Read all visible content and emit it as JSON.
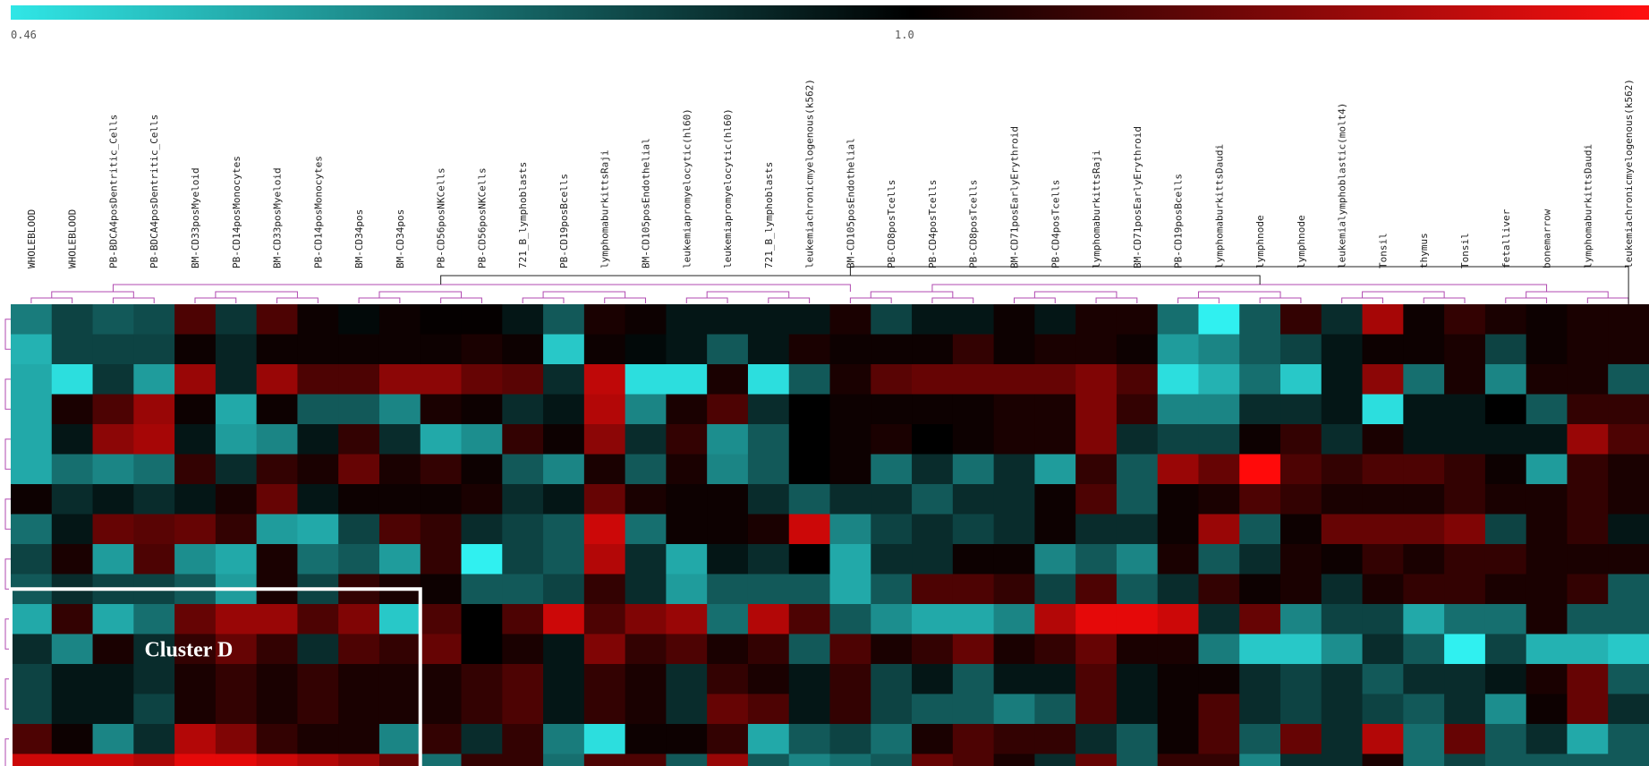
{
  "chart_data": {
    "type": "heatmap",
    "color_scale": {
      "min_label": "0.46",
      "mid_label": "1.0",
      "colors": [
        "#30e6e6",
        "#000000",
        "#ff0000"
      ]
    },
    "columns": [
      "WHOLEBLOOD",
      "WHOLEBLOOD",
      "PB-BDCA4posDentritic_Cells",
      "PB-BDCA4posDentritic_Cells",
      "BM-CD33posMyeloid",
      "PB-CD14posMonocytes",
      "BM-CD33posMyeloid",
      "PB-CD14posMonocytes",
      "BM-CD34pos",
      "BM-CD34pos",
      "PB-CD56posNKCells",
      "PB-CD56posNKCells",
      "721_B_lymphoblasts",
      "PB-CD19posBcells",
      "lymphomaburkittsRaji",
      "BM-CD105posEndothelial",
      "leukemiapromyelocytic(hl60)",
      "leukemiapromyelocytic(hl60)",
      "721_B_lymphoblasts",
      "leukemiachronicmyelogenous(k562)",
      "BM-CD105posEndothelial",
      "PB-CD8posTcells",
      "PB-CD4posTcells",
      "PB-CD8posTcells",
      "BM-CD71posEarlyErythroid",
      "PB-CD4posTcells",
      "lymphomaburkittsRaji",
      "BM-CD71posEarlyErythroid",
      "PB-CD19posBcells",
      "lymphomaburkittsDaudi",
      "lymphnode",
      "lymphnode",
      "leukemialymphoblastic(molt4)",
      "Tonsil",
      "thymus",
      "Tonsil",
      "fetalliver",
      "bonemarrow",
      "lymphomaburkittsDaudi",
      "leukemiachronicmyelogenous(k562)"
    ],
    "rows": 16,
    "values": [
      [
        0.72,
        0.85,
        0.8,
        0.83,
        1.3,
        0.88,
        1.3,
        1.05,
        0.98,
        1.05,
        1.02,
        1.02,
        0.95,
        0.8,
        1.1,
        1.05,
        0.95,
        0.95,
        0.95,
        0.95,
        1.1,
        0.85,
        0.95,
        0.95,
        1.05,
        0.95,
        1.1,
        1.1,
        0.75,
        0.46,
        0.8,
        1.2,
        0.9,
        1.65,
        1.05,
        1.2,
        1.1,
        1.05,
        1.1,
        1.1
      ],
      [
        0.6,
        0.85,
        0.85,
        0.85,
        1.05,
        0.92,
        1.05,
        1.05,
        1.05,
        1.05,
        1.05,
        1.1,
        1.05,
        0.55,
        1.05,
        0.98,
        0.95,
        0.8,
        0.95,
        1.1,
        1.05,
        1.05,
        1.05,
        1.2,
        1.05,
        1.1,
        1.1,
        1.05,
        0.65,
        0.7,
        0.8,
        0.85,
        0.95,
        1.05,
        1.05,
        1.1,
        0.85,
        1.05,
        1.1,
        1.1
      ],
      [
        0.62,
        0.5,
        0.88,
        0.65,
        1.6,
        0.92,
        1.6,
        1.3,
        1.3,
        1.55,
        1.55,
        1.4,
        1.35,
        0.9,
        1.75,
        0.5,
        0.5,
        1.1,
        0.5,
        0.8,
        1.1,
        1.35,
        1.4,
        1.4,
        1.4,
        1.4,
        1.5,
        1.3,
        0.5,
        0.6,
        0.75,
        0.55,
        0.95,
        1.55,
        0.75,
        1.1,
        0.7,
        1.1,
        1.1,
        0.8
      ],
      [
        0.62,
        1.1,
        1.3,
        1.6,
        1.05,
        0.62,
        1.05,
        0.8,
        0.8,
        0.7,
        1.1,
        1.05,
        0.9,
        0.95,
        1.7,
        0.7,
        1.1,
        1.3,
        0.9,
        1.0,
        1.05,
        1.05,
        1.05,
        1.05,
        1.1,
        1.1,
        1.5,
        1.2,
        0.7,
        0.7,
        0.9,
        0.9,
        0.95,
        0.5,
        0.95,
        0.95,
        1.0,
        0.8,
        1.2,
        1.2
      ],
      [
        0.62,
        0.95,
        1.55,
        1.65,
        0.95,
        0.65,
        0.7,
        0.95,
        1.2,
        0.9,
        0.62,
        0.68,
        1.2,
        1.05,
        1.55,
        0.9,
        1.2,
        0.68,
        0.8,
        1.0,
        1.05,
        1.1,
        1.0,
        1.05,
        1.1,
        1.1,
        1.5,
        0.9,
        0.85,
        0.85,
        1.05,
        1.2,
        0.9,
        1.1,
        0.95,
        0.95,
        0.95,
        0.95,
        1.6,
        1.3
      ],
      [
        0.62,
        0.75,
        0.7,
        0.75,
        1.2,
        0.9,
        1.2,
        1.1,
        1.4,
        1.1,
        1.2,
        1.05,
        0.8,
        0.7,
        1.1,
        0.8,
        1.1,
        0.7,
        0.8,
        1.0,
        1.05,
        0.75,
        0.9,
        0.75,
        0.9,
        0.65,
        1.2,
        0.8,
        1.6,
        1.4,
        2.0,
        1.3,
        1.2,
        1.3,
        1.3,
        1.2,
        1.05,
        0.65,
        1.2,
        1.1
      ],
      [
        1.05,
        0.9,
        0.95,
        0.9,
        0.95,
        1.1,
        1.4,
        0.95,
        1.05,
        1.05,
        1.05,
        1.1,
        0.9,
        0.95,
        1.4,
        1.1,
        1.05,
        1.05,
        0.9,
        0.8,
        0.9,
        0.9,
        0.8,
        0.9,
        0.9,
        1.05,
        1.3,
        0.8,
        1.05,
        1.1,
        1.3,
        1.2,
        1.1,
        1.1,
        1.1,
        1.2,
        1.1,
        1.1,
        1.2,
        1.1
      ],
      [
        0.75,
        0.95,
        1.4,
        1.35,
        1.4,
        1.2,
        0.65,
        0.62,
        0.85,
        1.3,
        1.2,
        0.9,
        0.85,
        0.8,
        1.8,
        0.75,
        1.05,
        1.05,
        1.1,
        1.8,
        0.7,
        0.85,
        0.9,
        0.85,
        0.9,
        1.05,
        0.9,
        0.9,
        1.05,
        1.6,
        0.8,
        1.05,
        1.4,
        1.4,
        1.4,
        1.5,
        0.85,
        1.1,
        1.2,
        0.95
      ],
      [
        0.85,
        1.1,
        0.65,
        1.3,
        0.68,
        0.62,
        1.1,
        0.75,
        0.8,
        0.65,
        1.2,
        0.46,
        0.85,
        0.8,
        1.7,
        0.9,
        0.62,
        0.95,
        0.9,
        1.0,
        0.62,
        0.9,
        0.9,
        1.05,
        1.05,
        0.7,
        0.8,
        0.7,
        1.1,
        0.8,
        0.9,
        1.1,
        1.05,
        1.2,
        1.1,
        1.2,
        1.2,
        1.1,
        1.1,
        1.1
      ],
      [
        0.8,
        0.9,
        0.85,
        0.85,
        0.8,
        0.65,
        1.1,
        0.85,
        1.2,
        1.1,
        1.05,
        0.8,
        0.8,
        0.85,
        1.2,
        0.9,
        0.65,
        0.8,
        0.8,
        0.8,
        0.62,
        0.8,
        1.3,
        1.3,
        1.2,
        0.85,
        1.3,
        0.8,
        0.9,
        1.2,
        1.05,
        1.1,
        0.9,
        1.1,
        1.2,
        1.2,
        1.1,
        1.1,
        1.2,
        0.8
      ],
      [
        0.62,
        1.2,
        0.62,
        0.75,
        1.4,
        1.6,
        1.6,
        1.3,
        1.5,
        0.55,
        1.3,
        1.0,
        1.3,
        1.8,
        1.3,
        1.5,
        1.6,
        0.75,
        1.7,
        1.3,
        0.8,
        0.68,
        0.62,
        0.62,
        0.7,
        1.7,
        1.9,
        1.9,
        1.8,
        0.9,
        1.4,
        0.7,
        0.85,
        0.85,
        0.62,
        0.75,
        0.75,
        1.1,
        0.8,
        0.8
      ],
      [
        0.9,
        0.7,
        1.1,
        0.9,
        1.2,
        1.4,
        1.2,
        0.9,
        1.3,
        1.2,
        1.4,
        1.0,
        1.1,
        0.95,
        1.5,
        1.2,
        1.3,
        1.1,
        1.2,
        0.8,
        1.3,
        1.1,
        1.2,
        1.4,
        1.1,
        1.2,
        1.4,
        1.1,
        1.1,
        0.72,
        0.55,
        0.55,
        0.68,
        0.9,
        0.8,
        0.46,
        0.85,
        0.6,
        0.6,
        0.55
      ],
      [
        0.85,
        0.95,
        0.95,
        0.9,
        1.1,
        1.2,
        1.1,
        1.2,
        1.1,
        1.1,
        1.1,
        1.2,
        1.3,
        0.95,
        1.2,
        1.1,
        0.9,
        1.2,
        1.1,
        0.95,
        1.2,
        0.85,
        0.95,
        0.8,
        0.95,
        0.95,
        1.3,
        0.95,
        1.05,
        1.05,
        0.9,
        0.85,
        0.9,
        0.8,
        0.9,
        0.9,
        0.95,
        1.1,
        1.4,
        0.8
      ],
      [
        0.85,
        0.95,
        0.95,
        0.85,
        1.1,
        1.2,
        1.1,
        1.2,
        1.1,
        1.1,
        1.1,
        1.2,
        1.3,
        0.95,
        1.2,
        1.1,
        0.9,
        1.4,
        1.3,
        0.95,
        1.2,
        0.85,
        0.8,
        0.8,
        0.72,
        0.8,
        1.3,
        0.95,
        1.05,
        1.3,
        0.9,
        0.85,
        0.9,
        0.85,
        0.8,
        0.9,
        0.68,
        1.05,
        1.4,
        0.9
      ],
      [
        1.3,
        1.05,
        0.7,
        0.9,
        1.7,
        1.5,
        1.2,
        1.1,
        1.1,
        0.7,
        1.2,
        0.9,
        1.2,
        0.72,
        0.5,
        1.05,
        1.05,
        1.2,
        0.62,
        0.8,
        0.85,
        0.75,
        1.1,
        1.3,
        1.2,
        1.2,
        0.9,
        0.8,
        1.05,
        1.3,
        0.8,
        1.4,
        0.9,
        1.7,
        0.75,
        1.4,
        0.8,
        0.9,
        0.62,
        0.8
      ],
      [
        1.8,
        1.8,
        1.8,
        1.7,
        1.9,
        1.9,
        1.8,
        1.7,
        1.6,
        1.4,
        0.75,
        1.2,
        1.2,
        0.75,
        1.3,
        1.3,
        0.8,
        1.6,
        0.8,
        0.7,
        0.75,
        0.8,
        1.4,
        1.3,
        1.1,
        0.9,
        1.4,
        0.8,
        1.2,
        1.2,
        0.7,
        0.9,
        0.9,
        1.1,
        0.75,
        0.85,
        0.8,
        0.8,
        0.8,
        0.8
      ]
    ],
    "annotations": [
      {
        "text": "Cluster D"
      }
    ]
  }
}
